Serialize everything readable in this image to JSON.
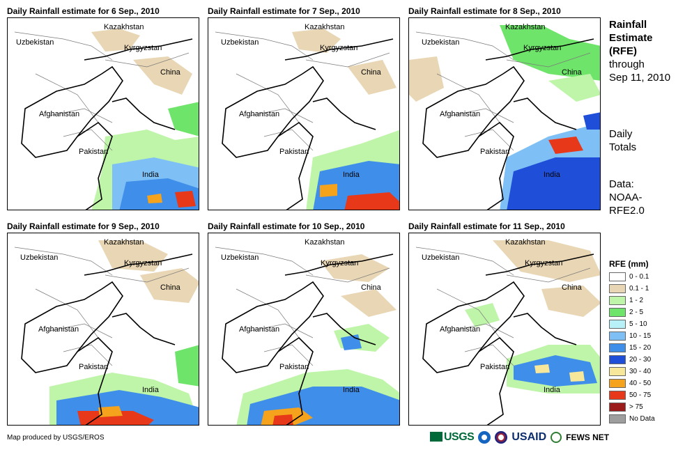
{
  "panels": [
    {
      "title": "Daily Rainfall estimate for 6 Sep., 2010"
    },
    {
      "title": "Daily Rainfall estimate for 7 Sep., 2010"
    },
    {
      "title": "Daily Rainfall estimate for 8 Sep., 2010"
    },
    {
      "title": "Daily Rainfall estimate for 9 Sep., 2010"
    },
    {
      "title": "Daily Rainfall estimate for 10 Sep., 2010"
    },
    {
      "title": "Daily Rainfall estimate for 11 Sep., 2010"
    }
  ],
  "map_labels": {
    "kazakhstan": "Kazakhstan",
    "uzbekistan": "Uzbekistan",
    "kyrgyzstan": "Kyrgyzstan",
    "china": "China",
    "afghanistan": "Afghanistan",
    "pakistan": "Pakistan",
    "india": "India"
  },
  "side": {
    "title_line1": "Rainfall",
    "title_line2": "Estimate",
    "title_line3": "(RFE)",
    "title_line4": "through",
    "title_line5": "Sep 11, 2010",
    "daily_line1": "Daily",
    "daily_line2": "Totals",
    "data_line1": "Data:",
    "data_line2": "NOAA-",
    "data_line3": "RFE2.0"
  },
  "legend": {
    "title": "RFE (mm)",
    "items": [
      {
        "label": "0 - 0.1",
        "color": "#ffffff"
      },
      {
        "label": "0.1 - 1",
        "color": "#e8d6b4"
      },
      {
        "label": "1 - 2",
        "color": "#bff5a8"
      },
      {
        "label": "2 - 5",
        "color": "#6fe46a"
      },
      {
        "label": "5 - 10",
        "color": "#b7f0f6"
      },
      {
        "label": "10 - 15",
        "color": "#7ec0f5"
      },
      {
        "label": "15 - 20",
        "color": "#3f8fea"
      },
      {
        "label": "20 - 30",
        "color": "#1f4fd8"
      },
      {
        "label": "30 - 40",
        "color": "#f7e79a"
      },
      {
        "label": "40 - 50",
        "color": "#f5a21c"
      },
      {
        "label": "50 - 75",
        "color": "#e8381a"
      },
      {
        "label": "> 75",
        "color": "#9c1c1c"
      },
      {
        "label": "No Data",
        "color": "#9e9e9e"
      }
    ]
  },
  "footer": {
    "credit": "Map produced by USGS/EROS",
    "logo_usgs": "USGS",
    "logo_usaid": "USAID",
    "logo_fews": "FEWS NET"
  }
}
